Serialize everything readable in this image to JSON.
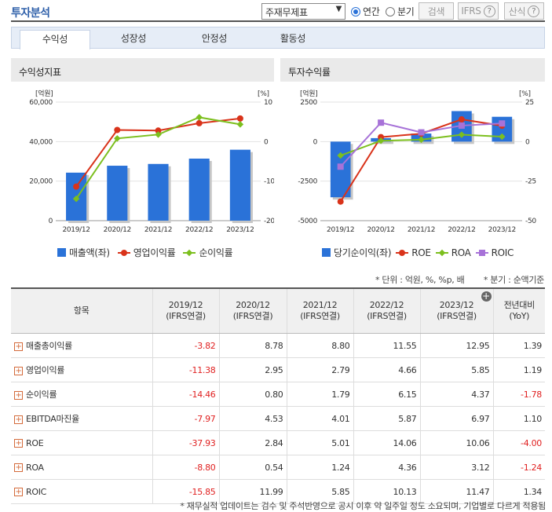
{
  "header": {
    "title": "투자분석",
    "select_value": "주재무제표",
    "radio_annual": "연간",
    "radio_quarter": "분기",
    "search_label": "검색",
    "ifrs_label": "IFRS",
    "calc_label": "산식",
    "help_glyph": "?"
  },
  "tabs": [
    "수익성",
    "성장성",
    "안정성",
    "활동성"
  ],
  "left_panel": {
    "title": "수익성지표",
    "legend": [
      "매출액(좌)",
      "영업이익률",
      "순이익률"
    ]
  },
  "right_panel": {
    "title": "투자수익률",
    "legend": [
      "당기순이익(좌)",
      "ROE",
      "ROA",
      "ROIC"
    ]
  },
  "chart_data": [
    {
      "type": "bar",
      "title": "수익성지표",
      "categories": [
        "2019/12",
        "2020/12",
        "2021/12",
        "2022/12",
        "2023/12"
      ],
      "left_axis": {
        "unit": "[억원]",
        "ticks": [
          "60,000",
          "40,000",
          "20,000",
          "0"
        ],
        "ylim": [
          0,
          60000
        ]
      },
      "right_axis": {
        "unit": "[%]",
        "ticks": [
          "10",
          "0",
          "-10",
          "-20"
        ],
        "ylim": [
          -20,
          10
        ]
      },
      "series": [
        {
          "name": "매출액(좌)",
          "kind": "bar",
          "axis": "left",
          "color": "#2a72d8",
          "values": [
            24300,
            27800,
            28700,
            31400,
            35900
          ]
        },
        {
          "name": "영업이익률",
          "kind": "line",
          "axis": "right",
          "color": "#d9331a",
          "marker": "circle",
          "values": [
            -11.38,
            2.95,
            2.79,
            4.66,
            5.85
          ]
        },
        {
          "name": "순이익률",
          "kind": "line",
          "axis": "right",
          "color": "#7cbf1e",
          "marker": "diamond",
          "values": [
            -14.46,
            0.8,
            1.79,
            6.15,
            4.37
          ]
        }
      ]
    },
    {
      "type": "bar",
      "title": "투자수익률",
      "categories": [
        "2019/12",
        "2020/12",
        "2021/12",
        "2022/12",
        "2023/12"
      ],
      "left_axis": {
        "unit": "[억원]",
        "ticks": [
          "2500",
          "0",
          "-2500",
          "-5000"
        ],
        "ylim": [
          -5000,
          2500
        ]
      },
      "right_axis": {
        "unit": "[%]",
        "ticks": [
          "25",
          "0",
          "-25",
          "-50"
        ],
        "ylim": [
          -50,
          25
        ]
      },
      "series": [
        {
          "name": "당기순이익(좌)",
          "kind": "bar",
          "axis": "left",
          "color": "#2a72d8",
          "values": [
            -3520,
            220,
            510,
            1930,
            1570
          ]
        },
        {
          "name": "ROE",
          "kind": "line",
          "axis": "right",
          "color": "#d9331a",
          "marker": "circle",
          "values": [
            -37.93,
            2.84,
            5.01,
            14.06,
            10.06
          ]
        },
        {
          "name": "ROA",
          "kind": "line",
          "axis": "right",
          "color": "#7cbf1e",
          "marker": "diamond",
          "values": [
            -8.8,
            0.54,
            1.24,
            4.36,
            3.12
          ]
        },
        {
          "name": "ROIC",
          "kind": "line",
          "axis": "right",
          "color": "#a772d8",
          "marker": "square",
          "values": [
            -15.85,
            11.99,
            5.85,
            10.13,
            11.47
          ]
        }
      ]
    }
  ],
  "notes": {
    "unit": "* 단위 : 억원, %, %p, 배",
    "quarter": "* 분기 : 순액기준"
  },
  "table": {
    "headers": [
      "항목",
      "2019/12\n(IFRS연결)",
      "2020/12\n(IFRS연결)",
      "2021/12\n(IFRS연결)",
      "2022/12\n(IFRS연결)",
      "2023/12\n(IFRS연결)",
      "전년대비\n(YoY)"
    ],
    "rows": [
      {
        "label": "매출총이익률",
        "values": [
          "-3.82",
          "8.78",
          "8.80",
          "11.55",
          "12.95",
          "1.39"
        ]
      },
      {
        "label": "영업이익률",
        "values": [
          "-11.38",
          "2.95",
          "2.79",
          "4.66",
          "5.85",
          "1.19"
        ]
      },
      {
        "label": "순이익률",
        "values": [
          "-14.46",
          "0.80",
          "1.79",
          "6.15",
          "4.37",
          "-1.78"
        ]
      },
      {
        "label": "EBITDA마진율",
        "values": [
          "-7.97",
          "4.53",
          "4.01",
          "5.87",
          "6.97",
          "1.10"
        ]
      },
      {
        "label": "ROE",
        "values": [
          "-37.93",
          "2.84",
          "5.01",
          "14.06",
          "10.06",
          "-4.00"
        ]
      },
      {
        "label": "ROA",
        "values": [
          "-8.80",
          "0.54",
          "1.24",
          "4.36",
          "3.12",
          "-1.24"
        ]
      },
      {
        "label": "ROIC",
        "values": [
          "-15.85",
          "11.99",
          "5.85",
          "10.13",
          "11.47",
          "1.34"
        ]
      }
    ]
  },
  "footer": "* 재무실적 업데이트는 검수 및 주석반영으로 공시 이후 약 일주일 정도 소요되며, 기업별로 다르게 적용됨"
}
